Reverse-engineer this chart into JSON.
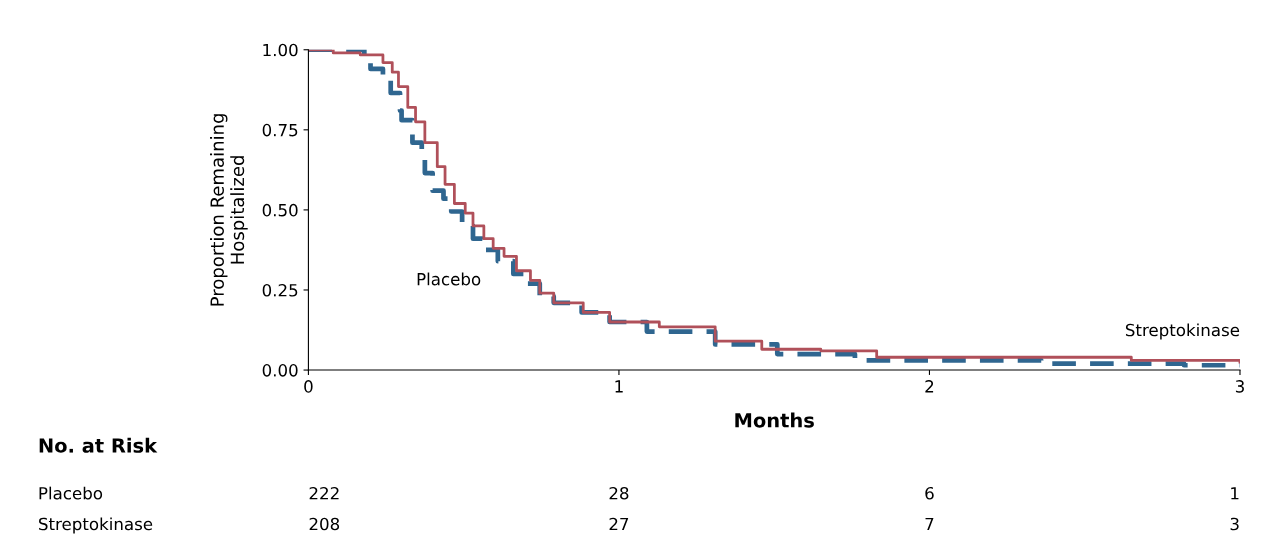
{
  "chart_data": {
    "type": "step",
    "xlabel": "Months",
    "ylabel": "Proportion Remaining\nHospitalized",
    "xlim": [
      0,
      3
    ],
    "xticks": [
      0,
      1,
      2,
      3
    ],
    "ylim": [
      0,
      1
    ],
    "yticks": [
      {
        "value": 0,
        "label": "0.00"
      },
      {
        "value": 0.25,
        "label": "0.25"
      },
      {
        "value": 0.5,
        "label": "0.50"
      },
      {
        "value": 0.75,
        "label": "0.75"
      },
      {
        "value": 1,
        "label": "1.00"
      }
    ],
    "grid": false,
    "legend": false,
    "marker": "none",
    "series": [
      {
        "name": "Placebo",
        "color": "#2f6690",
        "line_style": "dashed",
        "x": [
          0,
          0.18,
          0.2,
          0.24,
          0.265,
          0.295,
          0.3,
          0.335,
          0.365,
          0.375,
          0.4,
          0.435,
          0.46,
          0.495,
          0.53,
          0.56,
          0.61,
          0.66,
          0.705,
          0.745,
          0.79,
          0.88,
          0.97,
          1.09,
          1.31,
          1.51,
          1.76,
          2.36,
          2.82,
          3.0
        ],
        "values": [
          1.0,
          0.975,
          0.94,
          0.91,
          0.865,
          0.81,
          0.78,
          0.71,
          0.665,
          0.615,
          0.56,
          0.535,
          0.495,
          0.45,
          0.41,
          0.375,
          0.34,
          0.3,
          0.27,
          0.23,
          0.21,
          0.18,
          0.15,
          0.12,
          0.08,
          0.05,
          0.03,
          0.02,
          0.015,
          0.015
        ]
      },
      {
        "name": "Streptokinase",
        "color": "#b0505a",
        "line_style": "solid",
        "x": [
          0,
          0.08,
          0.167,
          0.24,
          0.27,
          0.29,
          0.32,
          0.345,
          0.375,
          0.415,
          0.44,
          0.47,
          0.505,
          0.53,
          0.565,
          0.595,
          0.63,
          0.67,
          0.715,
          0.745,
          0.79,
          0.885,
          0.97,
          1.13,
          1.31,
          1.46,
          1.65,
          1.83,
          2.65,
          3.0
        ],
        "values": [
          1.0,
          0.99,
          0.984,
          0.96,
          0.93,
          0.885,
          0.82,
          0.775,
          0.71,
          0.635,
          0.58,
          0.52,
          0.49,
          0.45,
          0.41,
          0.38,
          0.355,
          0.31,
          0.28,
          0.24,
          0.21,
          0.18,
          0.15,
          0.135,
          0.09,
          0.065,
          0.06,
          0.04,
          0.03,
          0.025
        ]
      }
    ],
    "annotations": [
      "No. at Risk",
      "Placebo",
      "222",
      "28",
      "6",
      "1",
      "Streptokinase",
      "208",
      "27",
      "7",
      "3"
    ]
  }
}
